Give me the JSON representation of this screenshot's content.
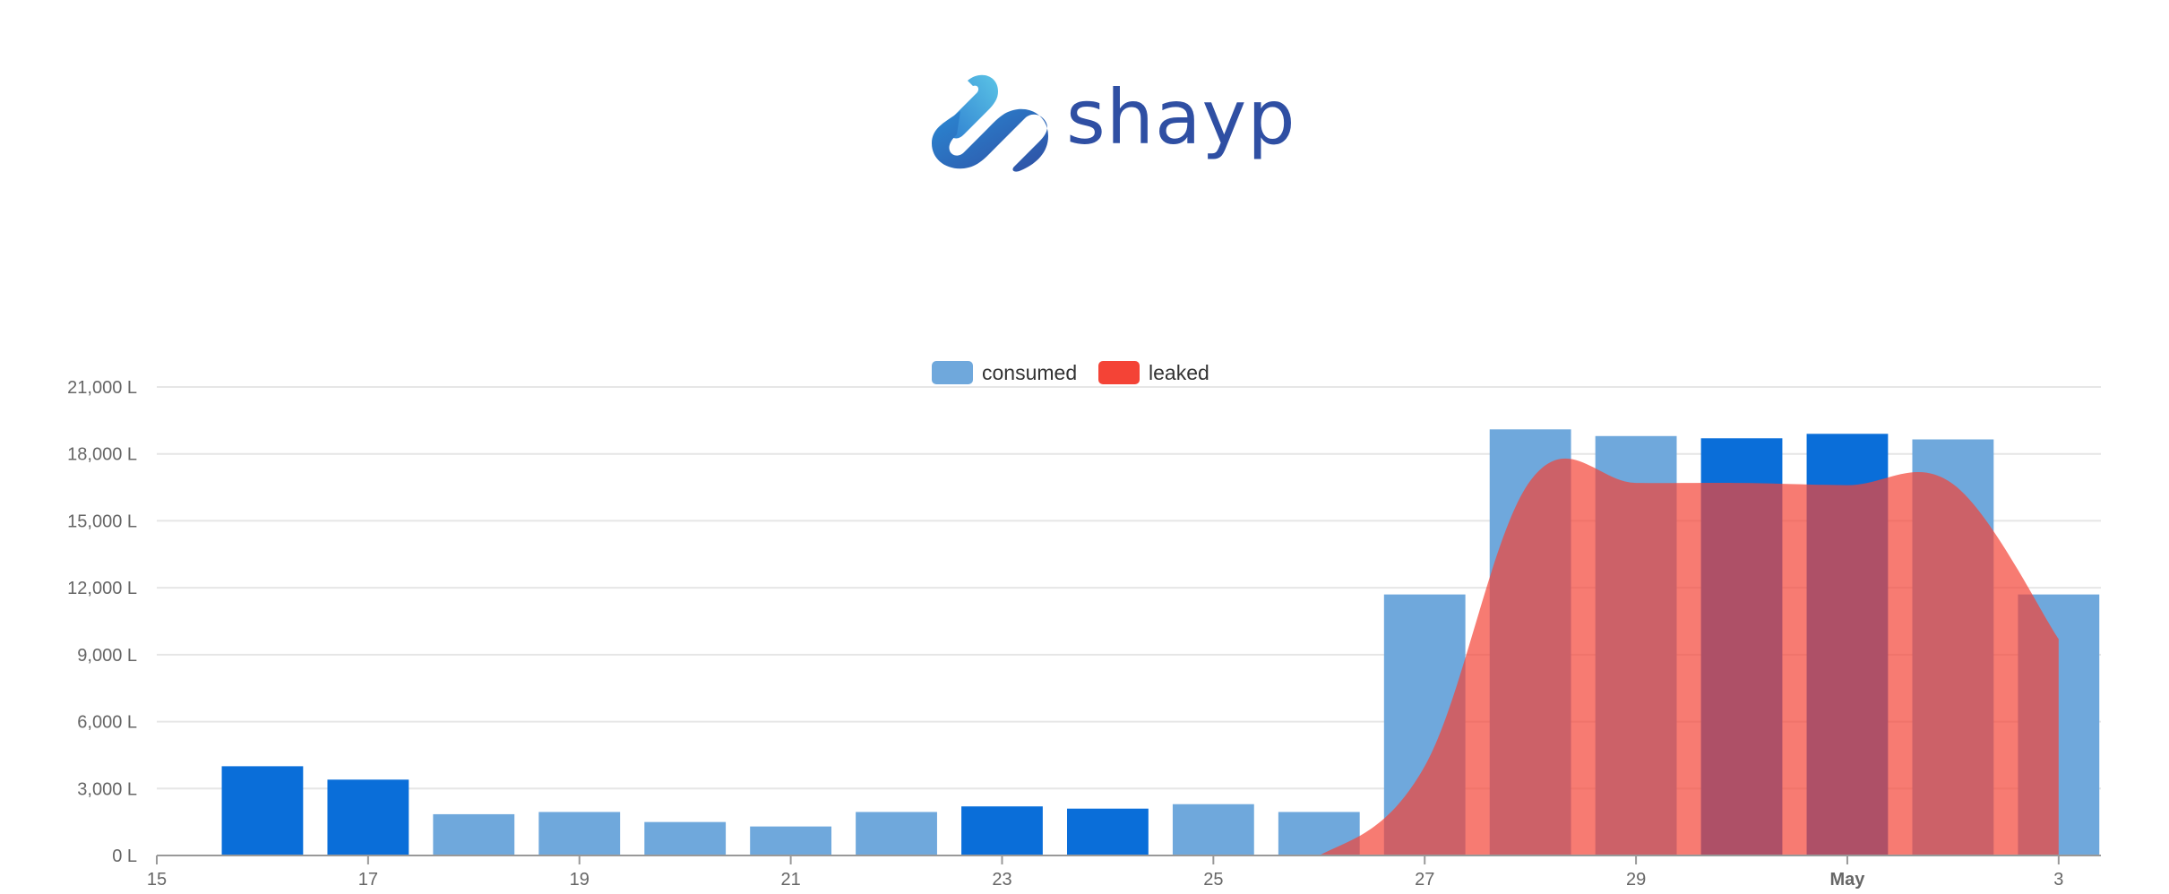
{
  "brand": {
    "name": "shayp",
    "logo_icon": "shayp-logo-icon",
    "logo_colors": [
      "#5bc4e6",
      "#2a89d4",
      "#2f4fa3"
    ]
  },
  "chart_data": {
    "type": "bar",
    "title": "",
    "xlabel": "",
    "ylabel": "",
    "ylim": [
      0,
      21000
    ],
    "yticks": [
      "0 L",
      "3,000 L",
      "6,000 L",
      "9,000 L",
      "12,000 L",
      "15,000 L",
      "18,000 L",
      "21,000 L"
    ],
    "yticks_values": [
      0,
      3000,
      6000,
      9000,
      12000,
      15000,
      18000,
      21000
    ],
    "xlim": [
      "2023-04-15",
      "2023-05-03"
    ],
    "xticks": [
      "15",
      "17",
      "19",
      "21",
      "23",
      "25",
      "27",
      "29",
      "May",
      "3"
    ],
    "xticks_dates": [
      "04-15",
      "04-17",
      "04-19",
      "04-21",
      "04-23",
      "04-25",
      "04-27",
      "04-29",
      "05-01",
      "05-03"
    ],
    "grid": true,
    "legend": "top-center",
    "series": [
      {
        "name": "consumed",
        "type": "bar",
        "color": "#6fa8dc",
        "highlight_color": "#0a6ed9",
        "dates": [
          "04-16",
          "04-17",
          "04-18",
          "04-19",
          "04-20",
          "04-21",
          "04-22",
          "04-23",
          "04-24",
          "04-25",
          "04-26",
          "04-27",
          "04-28",
          "04-29",
          "04-30",
          "05-01",
          "05-02",
          "05-03"
        ],
        "values": [
          4000,
          3400,
          1850,
          1950,
          1500,
          1300,
          1950,
          2200,
          2100,
          2300,
          1950,
          11700,
          19100,
          18800,
          18700,
          18900,
          18650,
          11700
        ],
        "highlighted": [
          true,
          true,
          false,
          false,
          false,
          false,
          false,
          true,
          true,
          false,
          false,
          false,
          false,
          false,
          true,
          true,
          false,
          false
        ]
      },
      {
        "name": "leaked",
        "type": "area",
        "color": "#f44336",
        "dates": [
          "04-26",
          "04-27",
          "04-28",
          "04-29",
          "04-30",
          "05-01",
          "05-02",
          "05-03"
        ],
        "values": [
          0,
          4000,
          16800,
          16700,
          16700,
          16600,
          16650,
          9700
        ]
      }
    ]
  }
}
